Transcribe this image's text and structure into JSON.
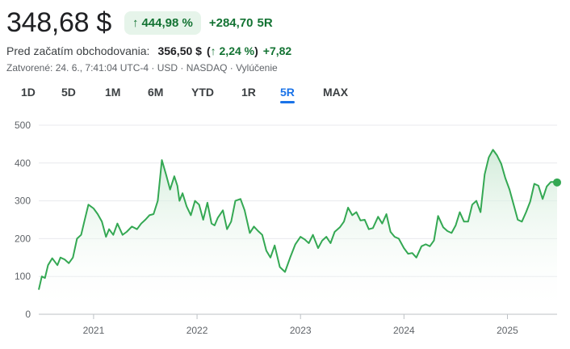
{
  "header": {
    "price": "348,68 $",
    "change_pct": "444,98 %",
    "change_abs": "+284,70",
    "change_period": "5R",
    "arrow": "↑"
  },
  "premarket": {
    "label": "Pred začatím obchodovania:",
    "price": "356,50 $",
    "pct": "2,24 %",
    "arrow": "↑",
    "abs": "+7,82"
  },
  "meta": {
    "text": "Zatvorené: 24. 6., 7:41:04 UTC-4 · USD · NASDAQ · Vylúčenie"
  },
  "tabs": [
    {
      "label": "1D",
      "active": false
    },
    {
      "label": "5D",
      "active": false
    },
    {
      "label": "1M",
      "active": false
    },
    {
      "label": "6M",
      "active": false
    },
    {
      "label": "YTD",
      "active": false
    },
    {
      "label": "1R",
      "active": false
    },
    {
      "label": "5R",
      "active": true
    },
    {
      "label": "MAX",
      "active": false
    }
  ],
  "colors": {
    "line": "#34a853",
    "fill_top": "#ceead6",
    "grid": "#e8eaed",
    "axis": "#bdc1c6"
  },
  "chart_data": {
    "type": "line",
    "title": "",
    "xlabel": "",
    "ylabel": "",
    "ylim": [
      0,
      500
    ],
    "yticks": [
      "500",
      "400",
      "300",
      "200",
      "100",
      "0"
    ],
    "ytick_values": [
      500,
      400,
      300,
      200,
      100,
      0
    ],
    "xticks": [
      "2021",
      "2022",
      "2023",
      "2024",
      "2025"
    ],
    "xtick_values": [
      2021.0,
      2022.0,
      2023.0,
      2024.0,
      2025.0
    ],
    "xlim": [
      2020.47,
      2025.48
    ],
    "grid": true,
    "legend": "none",
    "series": [
      {
        "name": "",
        "x": [
          2020.47,
          2020.5,
          2020.53,
          2020.56,
          2020.6,
          2020.65,
          2020.68,
          2020.72,
          2020.76,
          2020.8,
          2020.84,
          2020.88,
          2020.91,
          2020.95,
          2021.0,
          2021.04,
          2021.08,
          2021.12,
          2021.15,
          2021.19,
          2021.23,
          2021.28,
          2021.32,
          2021.37,
          2021.42,
          2021.46,
          2021.5,
          2021.54,
          2021.58,
          2021.62,
          2021.66,
          2021.7,
          2021.74,
          2021.78,
          2021.81,
          2021.83,
          2021.86,
          2021.9,
          2021.94,
          2021.98,
          2022.02,
          2022.06,
          2022.1,
          2022.14,
          2022.17,
          2022.2,
          2022.25,
          2022.29,
          2022.33,
          2022.37,
          2022.42,
          2022.46,
          2022.51,
          2022.55,
          2022.59,
          2022.63,
          2022.67,
          2022.71,
          2022.75,
          2022.8,
          2022.85,
          2022.9,
          2022.95,
          2023.0,
          2023.04,
          2023.08,
          2023.12,
          2023.17,
          2023.21,
          2023.25,
          2023.29,
          2023.33,
          2023.38,
          2023.42,
          2023.46,
          2023.5,
          2023.54,
          2023.58,
          2023.62,
          2023.66,
          2023.7,
          2023.75,
          2023.79,
          2023.83,
          2023.87,
          2023.91,
          2023.95,
          2024.0,
          2024.04,
          2024.08,
          2024.12,
          2024.17,
          2024.21,
          2024.25,
          2024.29,
          2024.33,
          2024.38,
          2024.42,
          2024.46,
          2024.5,
          2024.54,
          2024.58,
          2024.62,
          2024.66,
          2024.7,
          2024.74,
          2024.78,
          2024.82,
          2024.86,
          2024.9,
          2024.94,
          2024.98,
          2025.02,
          2025.06,
          2025.1,
          2025.14,
          2025.18,
          2025.22,
          2025.26,
          2025.3,
          2025.34,
          2025.38,
          2025.42,
          2025.46,
          2025.48
        ],
        "values": [
          65,
          100,
          96,
          130,
          148,
          130,
          150,
          145,
          135,
          150,
          200,
          210,
          245,
          290,
          280,
          265,
          245,
          205,
          225,
          210,
          240,
          210,
          218,
          232,
          225,
          240,
          250,
          262,
          265,
          300,
          408,
          370,
          330,
          365,
          340,
          300,
          320,
          285,
          262,
          300,
          290,
          250,
          295,
          240,
          235,
          255,
          275,
          225,
          245,
          300,
          305,
          275,
          215,
          232,
          220,
          210,
          168,
          150,
          182,
          125,
          112,
          150,
          185,
          205,
          198,
          188,
          210,
          175,
          195,
          205,
          188,
          218,
          230,
          245,
          282,
          262,
          270,
          248,
          250,
          225,
          228,
          258,
          240,
          265,
          218,
          205,
          200,
          175,
          160,
          162,
          150,
          180,
          185,
          180,
          195,
          260,
          230,
          220,
          215,
          235,
          270,
          245,
          245,
          290,
          300,
          270,
          370,
          415,
          435,
          420,
          398,
          360,
          330,
          290,
          250,
          245,
          270,
          298,
          345,
          340,
          305,
          338,
          350,
          350,
          348.68
        ]
      }
    ]
  }
}
